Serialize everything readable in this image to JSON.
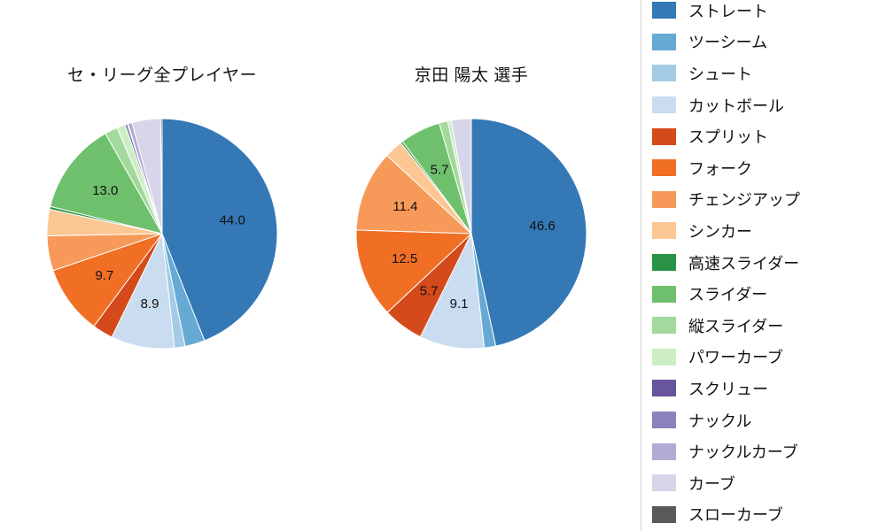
{
  "page": {
    "background": "#ffffff"
  },
  "chart_data": [
    {
      "type": "pie",
      "title": "セ・リーグ全プレイヤー",
      "units": "%",
      "start_angle": "top",
      "direction": "clockwise",
      "label_min_pct": 5.0,
      "slices": [
        {
          "label": "ストレート",
          "value": 44.0
        },
        {
          "label": "ツーシーム",
          "value": 2.8
        },
        {
          "label": "シュート",
          "value": 1.5
        },
        {
          "label": "カットボール",
          "value": 8.9
        },
        {
          "label": "スプリット",
          "value": 2.9
        },
        {
          "label": "フォーク",
          "value": 9.7
        },
        {
          "label": "チェンジアップ",
          "value": 4.9
        },
        {
          "label": "シンカー",
          "value": 3.7
        },
        {
          "label": "高速スライダー",
          "value": 0.4
        },
        {
          "label": "スライダー",
          "value": 13.0
        },
        {
          "label": "縦スライダー",
          "value": 1.8
        },
        {
          "label": "パワーカーブ",
          "value": 1.2
        },
        {
          "label": "スクリュー",
          "value": 0.3
        },
        {
          "label": "ナックル",
          "value": 0.1
        },
        {
          "label": "ナックルカーブ",
          "value": 0.6
        },
        {
          "label": "カーブ",
          "value": 4.0
        },
        {
          "label": "スローカーブ",
          "value": 0.2
        }
      ],
      "labeled_values": [
        44.0,
        8.9,
        9.7,
        13.0
      ]
    },
    {
      "type": "pie",
      "title": "京田 陽太 選手",
      "units": "%",
      "start_angle": "top",
      "direction": "clockwise",
      "label_min_pct": 5.0,
      "slices": [
        {
          "label": "ストレート",
          "value": 46.6
        },
        {
          "label": "ツーシーム",
          "value": 1.6
        },
        {
          "label": "カットボール",
          "value": 9.1
        },
        {
          "label": "スプリット",
          "value": 5.7
        },
        {
          "label": "フォーク",
          "value": 12.5
        },
        {
          "label": "チェンジアップ",
          "value": 11.4
        },
        {
          "label": "シンカー",
          "value": 2.6
        },
        {
          "label": "高速スライダー",
          "value": 0.3
        },
        {
          "label": "スライダー",
          "value": 5.7
        },
        {
          "label": "縦スライダー",
          "value": 1.2
        },
        {
          "label": "パワーカーブ",
          "value": 0.5
        },
        {
          "label": "カーブ",
          "value": 2.8
        }
      ],
      "labeled_values": [
        46.6,
        9.1,
        5.7,
        12.5,
        11.4,
        5.7
      ]
    }
  ],
  "legend": {
    "position": "right",
    "items": [
      {
        "label": "ストレート",
        "color": "#3478b6"
      },
      {
        "label": "ツーシーム",
        "color": "#66aad4"
      },
      {
        "label": "シュート",
        "color": "#a3cbe5"
      },
      {
        "label": "カットボール",
        "color": "#cadcf0"
      },
      {
        "label": "スプリット",
        "color": "#d44a1a"
      },
      {
        "label": "フォーク",
        "color": "#f06f24"
      },
      {
        "label": "チェンジアップ",
        "color": "#f79a59"
      },
      {
        "label": "シンカー",
        "color": "#fcc792"
      },
      {
        "label": "高速スライダー",
        "color": "#2a9245"
      },
      {
        "label": "スライダー",
        "color": "#6fc06d"
      },
      {
        "label": "縦スライダー",
        "color": "#a3d99c"
      },
      {
        "label": "パワーカーブ",
        "color": "#cdeec5"
      },
      {
        "label": "スクリュー",
        "color": "#67569e"
      },
      {
        "label": "ナックル",
        "color": "#8d81bd"
      },
      {
        "label": "ナックルカーブ",
        "color": "#b2abd4"
      },
      {
        "label": "カーブ",
        "color": "#d7d5e9"
      },
      {
        "label": "スローカーブ",
        "color": "#595959"
      }
    ]
  }
}
